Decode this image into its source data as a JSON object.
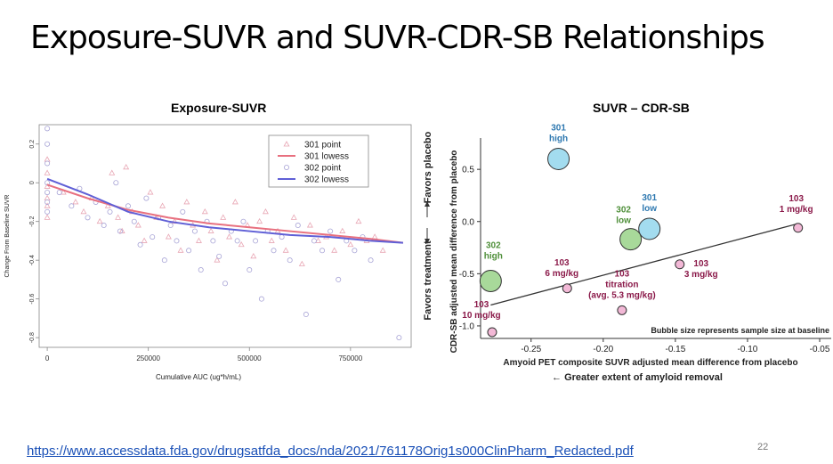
{
  "slide": {
    "title": "Exposure-SUVR and SUVR-CDR-SB Relationships",
    "source_url": "https://www.accessdata.fda.gov/drugsatfda_docs/nda/2021/761178Orig1s000ClinPharm_Redacted.pdf",
    "page_number": "22"
  },
  "chart_data": [
    {
      "type": "scatter",
      "title": "Exposure-SUVR",
      "xlabel": "Cumulative AUC (ug*h/mL)",
      "ylabel": "Change From Baseline SUVR",
      "xlim": [
        -20000,
        900000
      ],
      "ylim": [
        -0.85,
        0.3
      ],
      "x_ticks": [
        0,
        250000,
        500000,
        750000
      ],
      "x_tick_labels": [
        "0",
        "250000",
        "500000",
        "750000"
      ],
      "y_ticks": [
        0.2,
        0,
        -0.2,
        -0.4,
        -0.6,
        -0.8
      ],
      "y_tick_labels": [
        "0.2",
        "0",
        "-0.2",
        "-0.4",
        "-0.6",
        "-0.8"
      ],
      "grid": false,
      "legend_position": "top-right",
      "series": [
        {
          "name": "301 point",
          "kind": "point",
          "marker": "triangle",
          "color": "#e8a6b4",
          "x": [
            0,
            0,
            0,
            0,
            0,
            0,
            40000,
            70000,
            90000,
            110000,
            130000,
            150000,
            160000,
            175000,
            185000,
            195000,
            210000,
            225000,
            240000,
            255000,
            270000,
            285000,
            300000,
            315000,
            330000,
            345000,
            360000,
            375000,
            390000,
            405000,
            420000,
            435000,
            450000,
            465000,
            480000,
            495000,
            510000,
            525000,
            540000,
            555000,
            570000,
            590000,
            610000,
            630000,
            650000,
            670000,
            690000,
            710000,
            730000,
            750000,
            770000,
            790000,
            810000,
            830000
          ],
          "y": [
            0.05,
            -0.02,
            -0.08,
            -0.12,
            -0.18,
            0.12,
            -0.05,
            -0.1,
            -0.15,
            -0.08,
            -0.2,
            -0.12,
            0.05,
            -0.18,
            -0.25,
            0.08,
            -0.15,
            -0.22,
            -0.3,
            -0.05,
            -0.18,
            -0.12,
            -0.28,
            -0.2,
            -0.35,
            -0.1,
            -0.22,
            -0.3,
            -0.15,
            -0.25,
            -0.4,
            -0.18,
            -0.28,
            -0.1,
            -0.32,
            -0.22,
            -0.38,
            -0.2,
            -0.15,
            -0.3,
            -0.25,
            -0.35,
            -0.18,
            -0.42,
            -0.22,
            -0.3,
            -0.28,
            -0.35,
            -0.25,
            -0.32,
            -0.2,
            -0.3,
            -0.28,
            -0.35
          ]
        },
        {
          "name": "301 lowess",
          "kind": "line",
          "color": "#e8707f",
          "x": [
            0,
            100000,
            200000,
            300000,
            400000,
            500000,
            600000,
            700000,
            800000,
            880000
          ],
          "y": [
            -0.01,
            -0.08,
            -0.14,
            -0.18,
            -0.21,
            -0.23,
            -0.25,
            -0.27,
            -0.29,
            -0.31
          ]
        },
        {
          "name": "302 point",
          "kind": "point",
          "marker": "circle",
          "color": "#a8a4d6",
          "x": [
            0,
            0,
            0,
            0,
            0,
            0,
            0,
            30000,
            60000,
            80000,
            100000,
            120000,
            140000,
            155000,
            170000,
            180000,
            200000,
            215000,
            230000,
            245000,
            260000,
            275000,
            290000,
            305000,
            320000,
            335000,
            350000,
            365000,
            380000,
            395000,
            410000,
            425000,
            440000,
            455000,
            470000,
            485000,
            500000,
            515000,
            530000,
            545000,
            560000,
            580000,
            600000,
            620000,
            640000,
            660000,
            680000,
            700000,
            720000,
            740000,
            760000,
            780000,
            800000,
            870000
          ],
          "y": [
            0.28,
            0.2,
            0.1,
            0.0,
            -0.05,
            -0.1,
            -0.15,
            -0.05,
            -0.12,
            -0.03,
            -0.18,
            -0.1,
            -0.22,
            -0.15,
            0.0,
            -0.25,
            -0.12,
            -0.2,
            -0.32,
            -0.08,
            -0.28,
            -0.18,
            -0.4,
            -0.22,
            -0.3,
            -0.15,
            -0.35,
            -0.25,
            -0.45,
            -0.2,
            -0.3,
            -0.38,
            -0.52,
            -0.25,
            -0.3,
            -0.2,
            -0.45,
            -0.3,
            -0.6,
            -0.25,
            -0.35,
            -0.28,
            -0.4,
            -0.22,
            -0.68,
            -0.3,
            -0.35,
            -0.25,
            -0.5,
            -0.3,
            -0.35,
            -0.28,
            -0.4,
            -0.8
          ]
        },
        {
          "name": "302 lowess",
          "kind": "line",
          "color": "#5f5fd6",
          "x": [
            0,
            100000,
            200000,
            300000,
            400000,
            500000,
            600000,
            700000,
            800000,
            880000
          ],
          "y": [
            0.02,
            -0.06,
            -0.15,
            -0.2,
            -0.23,
            -0.25,
            -0.27,
            -0.28,
            -0.3,
            -0.31
          ]
        }
      ]
    },
    {
      "type": "scatter",
      "title": "SUVR – CDR-SB",
      "xlabel": "Amyoid PET composite SUVR adjusted mean difference from placebo",
      "xlabel2": "← Greater extent of amyloid removal",
      "ylabel": "CDR-SB adjusted mean difference from placebo",
      "y_annotation_top": "Favors placebo",
      "y_annotation_bottom": "Favors treatment",
      "xlim": [
        -0.285,
        -0.042
      ],
      "ylim": [
        -1.12,
        0.8
      ],
      "x_ticks": [
        -0.25,
        -0.2,
        -0.15,
        -0.1,
        -0.05
      ],
      "x_tick_labels": [
        "-0.25",
        "-0.20",
        "-0.15",
        "-0.10",
        "-0.05"
      ],
      "y_ticks": [
        0.5,
        0.0,
        -0.5,
        -1.0
      ],
      "y_tick_labels": [
        "0.5",
        "0.0",
        "-0.5",
        "-1.0"
      ],
      "grid": false,
      "note": "Bubble size represents sample size at baseline",
      "trend_line": {
        "x": [
          -0.278,
          -0.065
        ],
        "y": [
          -0.8,
          -0.02
        ]
      },
      "points": [
        {
          "label_lines": [
            "301",
            "high"
          ],
          "x": -0.231,
          "y": 0.6,
          "size": "large",
          "color": "#a3dcef",
          "label_color": "#2e78b0"
        },
        {
          "label_lines": [
            "301",
            "low"
          ],
          "x": -0.168,
          "y": -0.07,
          "size": "large",
          "color": "#a3dcef",
          "label_color": "#2e78b0"
        },
        {
          "label_lines": [
            "302",
            "low"
          ],
          "x": -0.181,
          "y": -0.17,
          "size": "large",
          "color": "#a8d99a",
          "label_color": "#4f8f3a"
        },
        {
          "label_lines": [
            "302",
            "high"
          ],
          "x": -0.278,
          "y": -0.57,
          "size": "large",
          "color": "#a8d99a",
          "label_color": "#4f8f3a"
        },
        {
          "label_lines": [
            "103",
            "1 mg/kg"
          ],
          "x": -0.065,
          "y": -0.06,
          "size": "small",
          "color": "#f2b8d6",
          "label_color": "#8b1a4a"
        },
        {
          "label_lines": [
            "103",
            "3 mg/kg"
          ],
          "x": -0.147,
          "y": -0.41,
          "size": "small",
          "color": "#f2b8d6",
          "label_color": "#8b1a4a"
        },
        {
          "label_lines": [
            "103",
            "6 mg/kg"
          ],
          "x": -0.225,
          "y": -0.64,
          "size": "small",
          "color": "#f2b8d6",
          "label_color": "#8b1a4a"
        },
        {
          "label_lines": [
            "103",
            "titration",
            "(avg. 5.3 mg/kg)"
          ],
          "x": -0.187,
          "y": -0.85,
          "size": "small",
          "color": "#f2b8d6",
          "label_color": "#8b1a4a"
        },
        {
          "label_lines": [
            "103",
            "10 mg/kg"
          ],
          "x": -0.277,
          "y": -1.06,
          "size": "small",
          "color": "#f2b8d6",
          "label_color": "#8b1a4a"
        }
      ]
    }
  ]
}
